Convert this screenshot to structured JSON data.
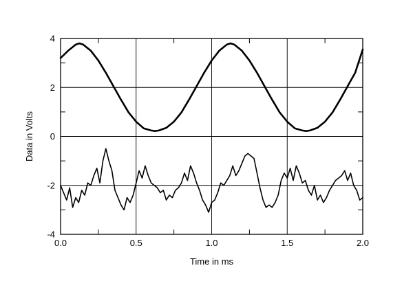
{
  "chart_data": {
    "type": "line",
    "title": "",
    "xlabel": "Time in ms",
    "ylabel": "Data in Volts",
    "xlim": [
      0.0,
      2.0
    ],
    "ylim": [
      -4,
      4
    ],
    "x_ticks": [
      "0.0",
      "0.5",
      "1.0",
      "1.5",
      "2.0"
    ],
    "x_tick_values": [
      0.0,
      0.5,
      1.0,
      1.5,
      2.0
    ],
    "y_ticks": [
      "-4",
      "-2",
      "0",
      "2",
      "4"
    ],
    "y_tick_values": [
      -4,
      -2,
      0,
      2,
      4
    ],
    "x_grid_values": [
      0.5,
      1.0,
      1.5
    ],
    "y_grid_values": [
      -2,
      0,
      2
    ],
    "x_minor_ticks": [
      0.25,
      0.75,
      1.25,
      1.75
    ],
    "y_minor_ticks": [
      -3,
      -1,
      1,
      3
    ],
    "grid": true,
    "line_color": "#000000",
    "series": [
      {
        "x": [
          0.0,
          0.05,
          0.1,
          0.125,
          0.15,
          0.2,
          0.25,
          0.3,
          0.35,
          0.4,
          0.45,
          0.5,
          0.55,
          0.6,
          0.625,
          0.65,
          0.7,
          0.75,
          0.8,
          0.85,
          0.9,
          0.95,
          1.0,
          1.05,
          1.1,
          1.125,
          1.15,
          1.2,
          1.25,
          1.3,
          1.35,
          1.4,
          1.45,
          1.5,
          1.55,
          1.6,
          1.625,
          1.65,
          1.7,
          1.75,
          1.8,
          1.85,
          1.9,
          1.95,
          2.0
        ],
        "values": [
          3.2,
          3.5,
          3.75,
          3.8,
          3.75,
          3.5,
          3.1,
          2.6,
          2.05,
          1.5,
          0.98,
          0.6,
          0.33,
          0.24,
          0.22,
          0.24,
          0.35,
          0.6,
          0.98,
          1.5,
          2.05,
          2.6,
          3.1,
          3.5,
          3.75,
          3.8,
          3.75,
          3.5,
          3.1,
          2.6,
          2.05,
          1.5,
          0.98,
          0.6,
          0.33,
          0.24,
          0.22,
          0.24,
          0.35,
          0.6,
          0.98,
          1.5,
          2.05,
          2.6,
          3.55
        ]
      },
      {
        "x": [
          0.0,
          0.02,
          0.04,
          0.06,
          0.08,
          0.1,
          0.12,
          0.14,
          0.16,
          0.18,
          0.2,
          0.22,
          0.24,
          0.26,
          0.28,
          0.3,
          0.32,
          0.34,
          0.36,
          0.38,
          0.4,
          0.42,
          0.44,
          0.46,
          0.48,
          0.5,
          0.52,
          0.54,
          0.56,
          0.58,
          0.6,
          0.62,
          0.64,
          0.66,
          0.68,
          0.7,
          0.72,
          0.74,
          0.76,
          0.78,
          0.8,
          0.82,
          0.84,
          0.86,
          0.88,
          0.9,
          0.92,
          0.94,
          0.96,
          0.98,
          1.0,
          1.02,
          1.04,
          1.06,
          1.08,
          1.1,
          1.12,
          1.14,
          1.16,
          1.18,
          1.2,
          1.22,
          1.24,
          1.26,
          1.28,
          1.3,
          1.32,
          1.34,
          1.36,
          1.38,
          1.4,
          1.42,
          1.44,
          1.46,
          1.48,
          1.5,
          1.52,
          1.54,
          1.56,
          1.58,
          1.6,
          1.62,
          1.64,
          1.66,
          1.68,
          1.7,
          1.72,
          1.74,
          1.76,
          1.78,
          1.8,
          1.82,
          1.84,
          1.86,
          1.88,
          1.9,
          1.92,
          1.94,
          1.96,
          1.98,
          2.0
        ],
        "values": [
          -2.0,
          -2.3,
          -2.6,
          -2.1,
          -2.9,
          -2.5,
          -2.7,
          -2.2,
          -2.4,
          -1.9,
          -2.0,
          -1.6,
          -1.3,
          -1.9,
          -1.0,
          -0.5,
          -1.0,
          -1.4,
          -2.2,
          -2.5,
          -2.8,
          -3.0,
          -2.5,
          -2.7,
          -2.4,
          -1.9,
          -1.4,
          -1.7,
          -1.2,
          -1.6,
          -1.9,
          -2.0,
          -2.1,
          -2.3,
          -2.2,
          -2.6,
          -2.4,
          -2.5,
          -2.2,
          -2.1,
          -1.9,
          -1.5,
          -1.8,
          -1.2,
          -1.5,
          -1.9,
          -2.2,
          -2.6,
          -2.8,
          -3.1,
          -2.7,
          -2.6,
          -2.3,
          -1.9,
          -2.0,
          -1.8,
          -1.6,
          -1.2,
          -1.6,
          -1.4,
          -1.1,
          -0.8,
          -0.7,
          -0.8,
          -0.9,
          -1.5,
          -2.1,
          -2.6,
          -2.9,
          -2.8,
          -2.9,
          -2.7,
          -2.4,
          -1.8,
          -1.5,
          -1.7,
          -1.3,
          -1.8,
          -1.2,
          -1.5,
          -1.9,
          -1.8,
          -2.2,
          -2.4,
          -2.0,
          -2.6,
          -2.4,
          -2.7,
          -2.5,
          -2.2,
          -2.0,
          -1.8,
          -1.7,
          -1.6,
          -1.4,
          -1.8,
          -1.5,
          -2.0,
          -2.2,
          -2.6,
          -2.5
        ]
      }
    ]
  }
}
